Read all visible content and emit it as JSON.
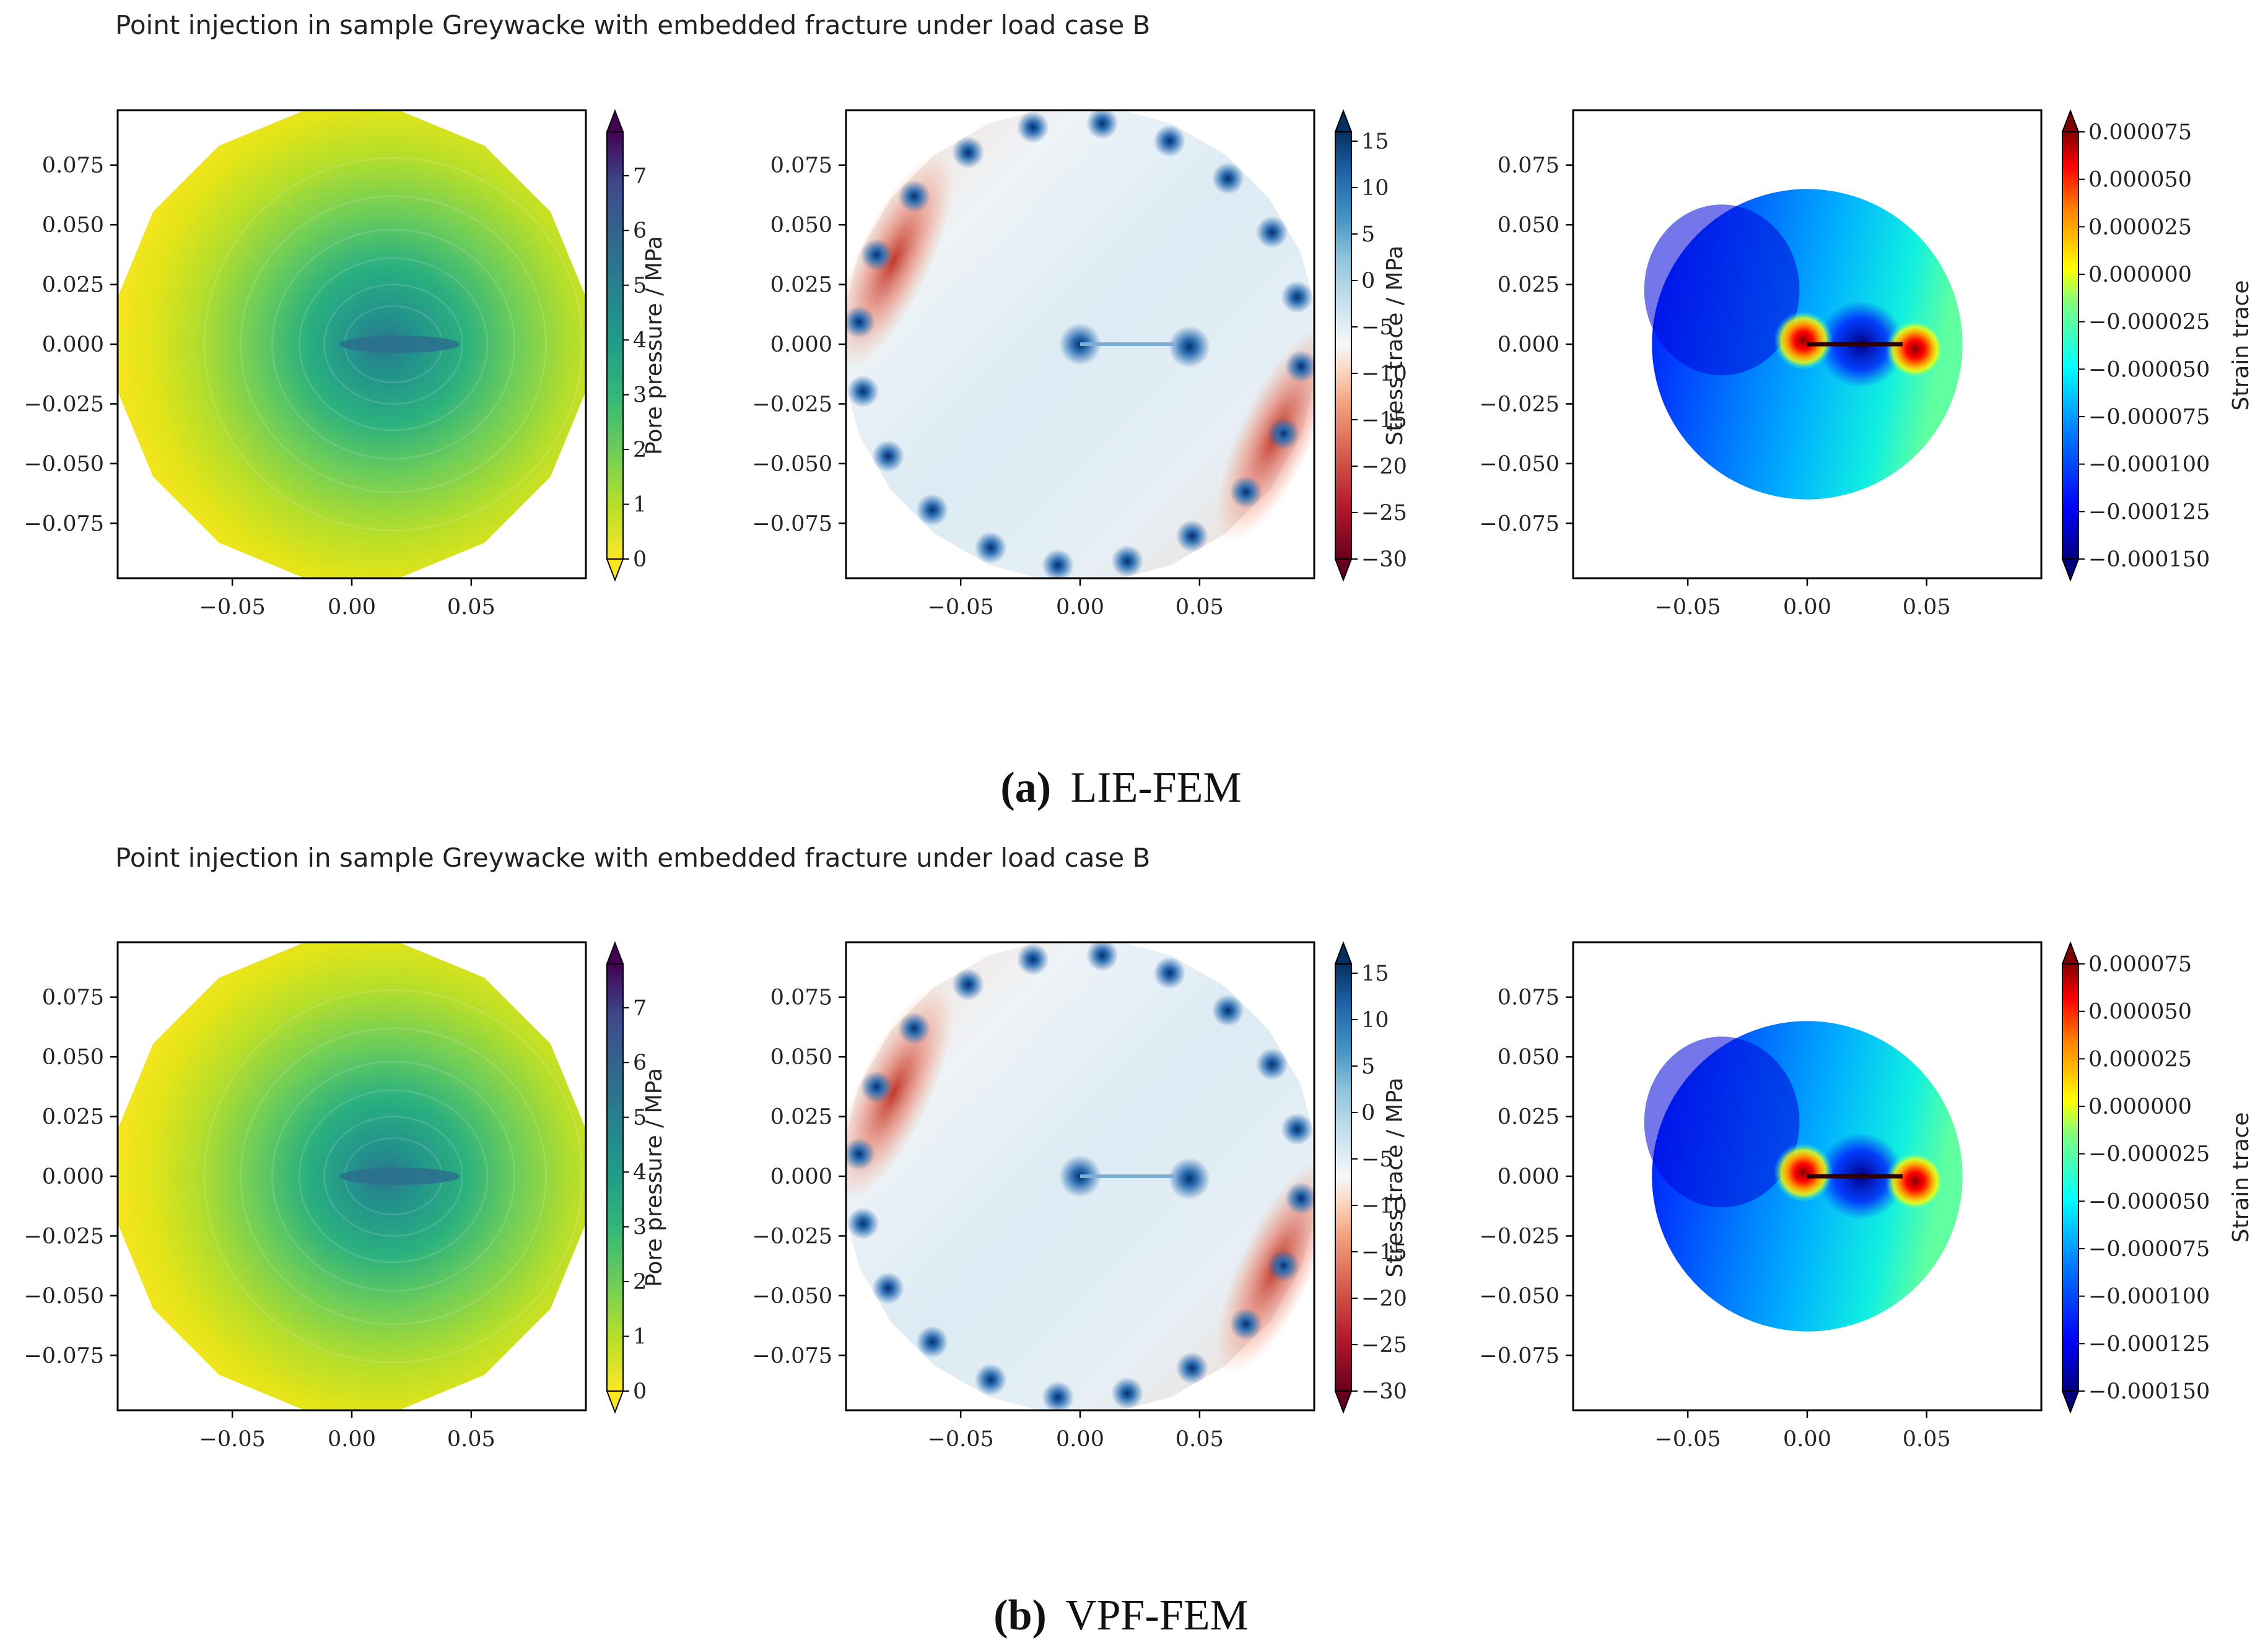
{
  "figure": {
    "panels": [
      {
        "id": "a",
        "suptitle": "Point injection in sample Greywacke with embedded fracture under load case B",
        "caption_tag": "(a)",
        "caption_text": "LIE-FEM"
      },
      {
        "id": "b",
        "suptitle": "Point injection in sample Greywacke with embedded fracture under load case B",
        "caption_tag": "(b)",
        "caption_text": "VPF-FEM"
      }
    ]
  },
  "chart_data": [
    {
      "type": "heatmap",
      "row": "a",
      "field": "pore_pressure",
      "title": "",
      "xlim": [
        -0.098,
        0.098
      ],
      "ylim": [
        -0.098,
        0.098
      ],
      "xticks": [
        -0.05,
        0.0,
        0.05
      ],
      "xtick_labels": [
        "−0.05",
        "0.00",
        "0.05"
      ],
      "yticks": [
        0.075,
        0.05,
        0.025,
        0.0,
        -0.025,
        -0.05,
        -0.075
      ],
      "ytick_labels": [
        "0.075",
        "0.050",
        "0.025",
        "0.000",
        "−0.025",
        "−0.050",
        "−0.075"
      ],
      "colorbar": {
        "label": "Pore pressure / MPa",
        "cmap": "viridis_r",
        "range": [
          0,
          7.8
        ],
        "ticks": [
          0,
          1,
          2,
          3,
          4,
          5,
          6,
          7
        ],
        "tick_labels": [
          "0",
          "1",
          "2",
          "3",
          "4",
          "5",
          "6",
          "7"
        ]
      },
      "domain_radius": 0.1,
      "fracture": {
        "x_start": 0.0,
        "x_end": 0.04,
        "y": 0.0
      },
      "center_value": 4.6,
      "boundary_value": 0.0
    },
    {
      "type": "heatmap",
      "row": "a",
      "field": "stress_trace",
      "xlim": [
        -0.098,
        0.098
      ],
      "ylim": [
        -0.098,
        0.098
      ],
      "xticks": [
        -0.05,
        0.0,
        0.05
      ],
      "xtick_labels": [
        "−0.05",
        "0.00",
        "0.05"
      ],
      "yticks": [
        0.075,
        0.05,
        0.025,
        0.0,
        -0.025,
        -0.05,
        -0.075
      ],
      "ytick_labels": [
        "0.075",
        "0.050",
        "0.025",
        "0.000",
        "−0.025",
        "−0.050",
        "−0.075"
      ],
      "colorbar": {
        "label": "Stress trace / MPa",
        "cmap": "RdBu",
        "range": [
          -30,
          16
        ],
        "ticks": [
          15,
          10,
          5,
          0,
          -5,
          -10,
          -15,
          -20,
          -25,
          -30
        ],
        "tick_labels": [
          "15",
          "10",
          "5",
          "0",
          "−5",
          "−10",
          "−15",
          "−20",
          "−25",
          "−30"
        ]
      },
      "domain_radius": 0.1,
      "fracture": {
        "x_start": 0.0,
        "x_end": 0.04,
        "y": 0.0
      }
    },
    {
      "type": "heatmap",
      "row": "a",
      "field": "strain_trace",
      "xlim": [
        -0.098,
        0.098
      ],
      "ylim": [
        -0.098,
        0.098
      ],
      "xticks": [
        -0.05,
        0.0,
        0.05
      ],
      "xtick_labels": [
        "−0.05",
        "0.00",
        "0.05"
      ],
      "yticks": [
        0.075,
        0.05,
        0.025,
        0.0,
        -0.025,
        -0.05,
        -0.075
      ],
      "ytick_labels": [
        "0.075",
        "0.050",
        "0.025",
        "0.000",
        "−0.025",
        "−0.050",
        "−0.075"
      ],
      "colorbar": {
        "label": "Strain trace",
        "cmap": "jet",
        "range": [
          -0.00015,
          7.5e-05
        ],
        "ticks": [
          7.5e-05,
          5e-05,
          2.5e-05,
          0.0,
          -2.5e-05,
          -5e-05,
          -7.5e-05,
          -0.0001,
          -0.000125,
          -0.00015
        ],
        "tick_labels": [
          "0.000075",
          "0.000050",
          "0.000025",
          "0.000000",
          "−0.000025",
          "−0.000050",
          "−0.000075",
          "−0.000100",
          "−0.000125",
          "−0.000150"
        ]
      },
      "domain_radius": 0.065,
      "fracture": {
        "x_start": 0.0,
        "x_end": 0.04,
        "y": 0.0
      }
    },
    {
      "type": "heatmap",
      "row": "b",
      "field": "pore_pressure",
      "xlim": [
        -0.098,
        0.098
      ],
      "ylim": [
        -0.098,
        0.098
      ],
      "xticks": [
        -0.05,
        0.0,
        0.05
      ],
      "xtick_labels": [
        "−0.05",
        "0.00",
        "0.05"
      ],
      "yticks": [
        0.075,
        0.05,
        0.025,
        0.0,
        -0.025,
        -0.05,
        -0.075
      ],
      "ytick_labels": [
        "0.075",
        "0.050",
        "0.025",
        "0.000",
        "−0.025",
        "−0.050",
        "−0.075"
      ],
      "colorbar": {
        "label": "Pore pressure / MPa",
        "cmap": "viridis_r",
        "range": [
          0,
          7.8
        ],
        "ticks": [
          0,
          1,
          2,
          3,
          4,
          5,
          6,
          7
        ],
        "tick_labels": [
          "0",
          "1",
          "2",
          "3",
          "4",
          "5",
          "6",
          "7"
        ]
      },
      "domain_radius": 0.1,
      "fracture": {
        "x_start": 0.0,
        "x_end": 0.04,
        "y": 0.0
      },
      "center_value": 4.6,
      "boundary_value": 0.0
    },
    {
      "type": "heatmap",
      "row": "b",
      "field": "stress_trace",
      "xlim": [
        -0.098,
        0.098
      ],
      "ylim": [
        -0.098,
        0.098
      ],
      "xticks": [
        -0.05,
        0.0,
        0.05
      ],
      "xtick_labels": [
        "−0.05",
        "0.00",
        "0.05"
      ],
      "yticks": [
        0.075,
        0.05,
        0.025,
        0.0,
        -0.025,
        -0.05,
        -0.075
      ],
      "ytick_labels": [
        "0.075",
        "0.050",
        "0.025",
        "0.000",
        "−0.025",
        "−0.050",
        "−0.075"
      ],
      "colorbar": {
        "label": "Stress trace / MPa",
        "cmap": "RdBu",
        "range": [
          -30,
          16
        ],
        "ticks": [
          15,
          10,
          5,
          0,
          -5,
          -10,
          -15,
          -20,
          -25,
          -30
        ],
        "tick_labels": [
          "15",
          "10",
          "5",
          "0",
          "−5",
          "−10",
          "−15",
          "−20",
          "−25",
          "−30"
        ]
      },
      "domain_radius": 0.1,
      "fracture": {
        "x_start": 0.0,
        "x_end": 0.04,
        "y": 0.0
      }
    },
    {
      "type": "heatmap",
      "row": "b",
      "field": "strain_trace",
      "xlim": [
        -0.098,
        0.098
      ],
      "ylim": [
        -0.098,
        0.098
      ],
      "xticks": [
        -0.05,
        0.0,
        0.05
      ],
      "xtick_labels": [
        "−0.05",
        "0.00",
        "0.05"
      ],
      "yticks": [
        0.075,
        0.05,
        0.025,
        0.0,
        -0.025,
        -0.05,
        -0.075
      ],
      "ytick_labels": [
        "0.075",
        "0.050",
        "0.025",
        "0.000",
        "−0.025",
        "−0.050",
        "−0.075"
      ],
      "colorbar": {
        "label": "Strain trace",
        "cmap": "jet",
        "range": [
          -0.00015,
          7.5e-05
        ],
        "ticks": [
          7.5e-05,
          5e-05,
          2.5e-05,
          0.0,
          -2.5e-05,
          -5e-05,
          -7.5e-05,
          -0.0001,
          -0.000125,
          -0.00015
        ],
        "tick_labels": [
          "0.000075",
          "0.000050",
          "0.000025",
          "0.000000",
          "−0.000025",
          "−0.000050",
          "−0.000075",
          "−0.000100",
          "−0.000125",
          "−0.000150"
        ]
      },
      "domain_radius": 0.065,
      "fracture": {
        "x_start": 0.0,
        "x_end": 0.04,
        "y": 0.0
      }
    }
  ]
}
